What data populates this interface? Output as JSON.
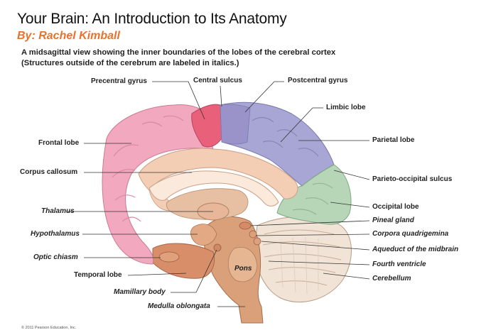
{
  "header": {
    "title": "Your Brain: An Introduction to Its Anatomy",
    "byline": "By: Rachel Kimball",
    "subtitle_line1": "A midsagittal view showing the inner boundaries of the lobes of the cerebral cortex",
    "subtitle_line2": "(Structures outside of the cerebrum are labeled in italics.)"
  },
  "labels": {
    "precentral_gyrus": "Precentral gyrus",
    "central_sulcus": "Central sulcus",
    "postcentral_gyrus": "Postcentral gyrus",
    "limbic_lobe": "Limbic lobe",
    "frontal_lobe": "Frontal lobe",
    "parietal_lobe": "Parietal lobe",
    "corpus_callosum": "Corpus callosum",
    "parieto_occipital_sulcus": "Parieto-occipital sulcus",
    "thalamus": "Thalamus",
    "occipital_lobe": "Occipital lobe",
    "pineal_gland": "Pineal gland",
    "hypothalamus": "Hypothalamus",
    "corpora_quadrigemina": "Corpora quadrigemina",
    "aqueduct": "Aqueduct of the midbrain",
    "optic_chiasm": "Optic chiasm",
    "fourth_ventricle": "Fourth ventricle",
    "pons": "Pons",
    "temporal_lobe": "Temporal lobe",
    "cerebellum": "Cerebellum",
    "mamillary_body": "Mamillary body",
    "medulla_oblongata": "Medulla oblongata"
  },
  "colors": {
    "frontal": "#f2a9bf",
    "precentral": "#e8607a",
    "postcentral": "#9a93c9",
    "parietal": "#a7a6d4",
    "occipital": "#b7d6b8",
    "limbic": "#f3cdb4",
    "brainstem": "#d9a07a",
    "cerebellum": "#f1e3d6",
    "accent": "#e8722a"
  },
  "footer": {
    "copyright": "© 2011 Pearson Education, Inc."
  }
}
